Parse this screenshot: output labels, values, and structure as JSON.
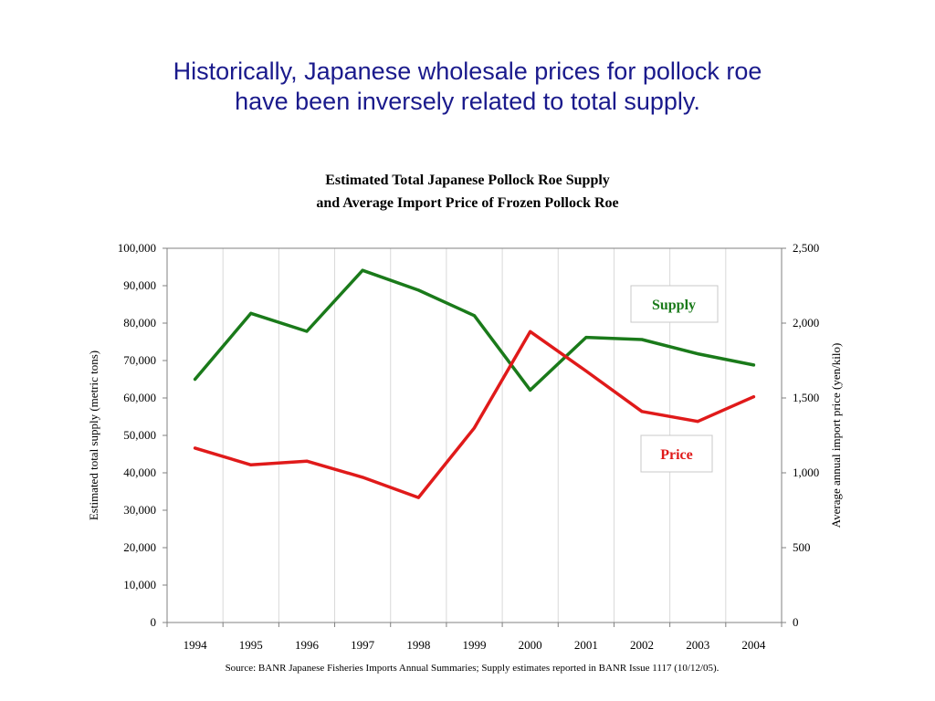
{
  "slide": {
    "headline_line1": "Historically, Japanese wholesale prices for pollock roe",
    "headline_line2": "have been inversely related to total supply."
  },
  "chart_data": {
    "type": "line",
    "title_line1": "Estimated Total Japanese Pollock Roe Supply",
    "title_line2": "and Average Import Price of Frozen Pollock Roe",
    "x": [
      "1994",
      "1995",
      "1996",
      "1997",
      "1998",
      "1999",
      "2000",
      "2001",
      "2002",
      "2003",
      "2004"
    ],
    "ylabel_left": "Estimated total supply (metric tons)",
    "ylabel_right": "Average annual import price (yen/kilo)",
    "ylim_left": [
      0,
      100000
    ],
    "ylim_right": [
      0,
      2500
    ],
    "yticks_left": [
      "0",
      "10,000",
      "20,000",
      "30,000",
      "40,000",
      "50,000",
      "60,000",
      "70,000",
      "80,000",
      "90,000",
      "100,000"
    ],
    "yticks_right": [
      "0",
      "500",
      "1,000",
      "1,500",
      "2,000",
      "2,500"
    ],
    "grid": "vertical",
    "series": [
      {
        "name": "Supply",
        "axis": "left",
        "color": "#1a7a1a",
        "values": [
          65000,
          82600,
          77800,
          94100,
          88800,
          82000,
          62100,
          76200,
          75600,
          71800,
          68800
        ]
      },
      {
        "name": "Price",
        "axis": "right",
        "color": "#e01a1a",
        "values": [
          1165,
          1053,
          1078,
          970,
          835,
          1300,
          1943,
          1680,
          1410,
          1343,
          1508
        ]
      }
    ],
    "source": "Source: BANR Japanese Fisheries Imports Annual Summaries; Supply estimates reported in BANR Issue 1117 (10/12/05)."
  }
}
